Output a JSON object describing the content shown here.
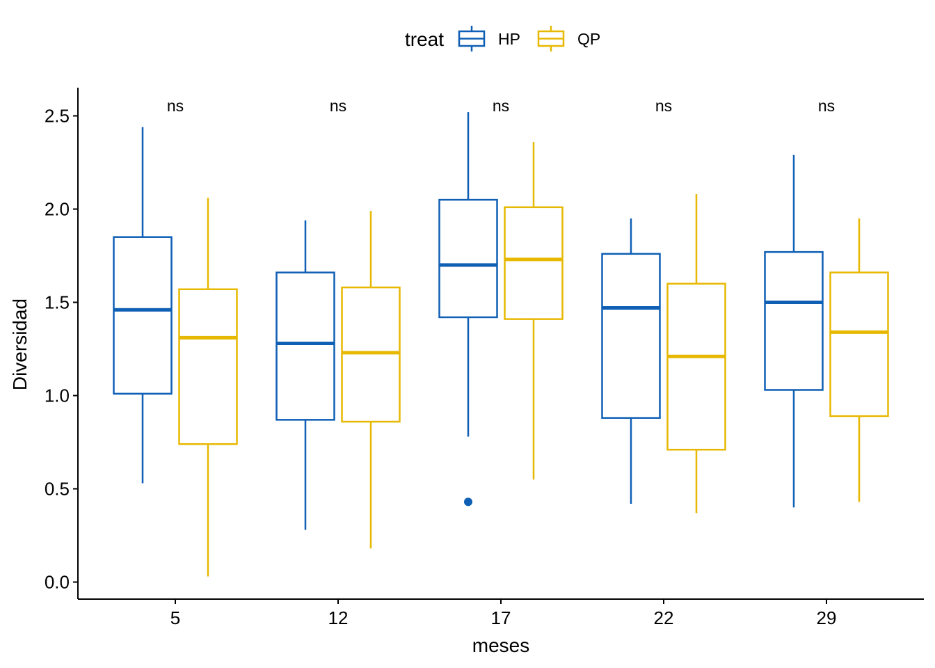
{
  "chart_data": {
    "type": "boxplot",
    "xlabel": "meses",
    "ylabel": "Diversidad",
    "categories": [
      "5",
      "12",
      "17",
      "22",
      "29"
    ],
    "ylim": [
      -0.09,
      2.64
    ],
    "yticks": [
      0.0,
      0.5,
      1.0,
      1.5,
      2.0,
      2.5
    ],
    "ytick_labels": [
      "0.0",
      "0.5",
      "1.0",
      "1.5",
      "2.0",
      "2.5"
    ],
    "grid": false,
    "legend": {
      "title": "treat",
      "placement": "top-center",
      "entries": [
        "HP",
        "QP"
      ]
    },
    "annotations": [
      "ns",
      "ns",
      "ns",
      "ns",
      "ns"
    ],
    "series": [
      {
        "name": "HP",
        "color": "#0F5FB5",
        "boxes": [
          {
            "lower_whisker": 0.53,
            "q1": 1.01,
            "median": 1.46,
            "q3": 1.85,
            "upper_whisker": 2.44,
            "outliers": []
          },
          {
            "lower_whisker": 0.28,
            "q1": 0.87,
            "median": 1.28,
            "q3": 1.66,
            "upper_whisker": 1.94,
            "outliers": []
          },
          {
            "lower_whisker": 0.78,
            "q1": 1.42,
            "median": 1.7,
            "q3": 2.05,
            "upper_whisker": 2.52,
            "outliers": [
              0.43
            ]
          },
          {
            "lower_whisker": 0.42,
            "q1": 0.88,
            "median": 1.47,
            "q3": 1.76,
            "upper_whisker": 1.95,
            "outliers": []
          },
          {
            "lower_whisker": 0.4,
            "q1": 1.03,
            "median": 1.5,
            "q3": 1.77,
            "upper_whisker": 2.29,
            "outliers": []
          }
        ]
      },
      {
        "name": "QP",
        "color": "#E7B800",
        "boxes": [
          {
            "lower_whisker": 0.03,
            "q1": 0.74,
            "median": 1.31,
            "q3": 1.57,
            "upper_whisker": 2.06,
            "outliers": []
          },
          {
            "lower_whisker": 0.18,
            "q1": 0.86,
            "median": 1.23,
            "q3": 1.58,
            "upper_whisker": 1.99,
            "outliers": []
          },
          {
            "lower_whisker": 0.55,
            "q1": 1.41,
            "median": 1.73,
            "q3": 2.01,
            "upper_whisker": 2.36,
            "outliers": []
          },
          {
            "lower_whisker": 0.37,
            "q1": 0.71,
            "median": 1.21,
            "q3": 1.6,
            "upper_whisker": 2.08,
            "outliers": []
          },
          {
            "lower_whisker": 0.43,
            "q1": 0.89,
            "median": 1.34,
            "q3": 1.66,
            "upper_whisker": 1.95,
            "outliers": []
          }
        ]
      }
    ]
  }
}
